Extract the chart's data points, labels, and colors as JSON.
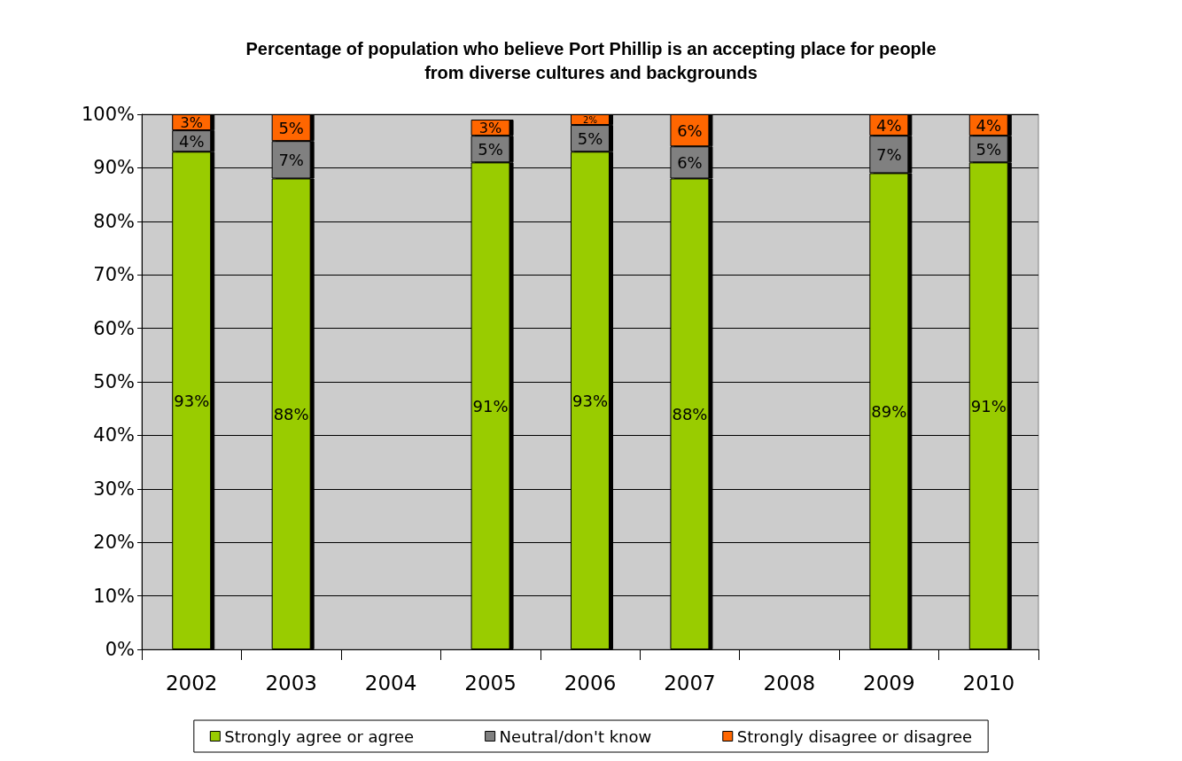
{
  "chart_data": {
    "type": "bar",
    "title": "Percentage of population who believe Port Phillip is an accepting place for people\nfrom diverse cultures and backgrounds",
    "categories": [
      "2002",
      "2003",
      "2004",
      "2005",
      "2006",
      "2007",
      "2008",
      "2009",
      "2010"
    ],
    "stacked": true,
    "series": [
      {
        "name": "Strongly agree or agree",
        "color": "#99cc00",
        "values": [
          93,
          88,
          null,
          91,
          93,
          88,
          null,
          89,
          91
        ],
        "value_labels": [
          "93%",
          "88%",
          null,
          "91%",
          "93%",
          "88%",
          null,
          "89%",
          "91%"
        ]
      },
      {
        "name": "Neutral/don't know",
        "color": "#808080",
        "values": [
          4,
          7,
          null,
          5,
          5,
          6,
          null,
          7,
          5
        ],
        "value_labels": [
          "4%",
          "7%",
          null,
          "5%",
          "5%",
          "6%",
          null,
          "7%",
          "5%"
        ]
      },
      {
        "name": "Strongly disagree or disagree",
        "color": "#ff6600",
        "values": [
          3,
          5,
          null,
          3,
          2,
          6,
          null,
          4,
          4
        ],
        "value_labels": [
          "3%",
          "5%",
          null,
          "3%",
          "2%",
          "6%",
          null,
          "4%",
          "4%"
        ]
      }
    ],
    "ylim": [
      0,
      100
    ],
    "yticks": [
      {
        "value": 0,
        "label": "0%"
      },
      {
        "value": 10,
        "label": "10%"
      },
      {
        "value": 20,
        "label": "20%"
      },
      {
        "value": 30,
        "label": "30%"
      },
      {
        "value": 40,
        "label": "40%"
      },
      {
        "value": 50,
        "label": "50%"
      },
      {
        "value": 60,
        "label": "60%"
      },
      {
        "value": 70,
        "label": "70%"
      },
      {
        "value": 80,
        "label": "80%"
      },
      {
        "value": 90,
        "label": "90%"
      },
      {
        "value": 100,
        "label": "100%"
      }
    ],
    "grid": "y",
    "legend": "bottom"
  }
}
